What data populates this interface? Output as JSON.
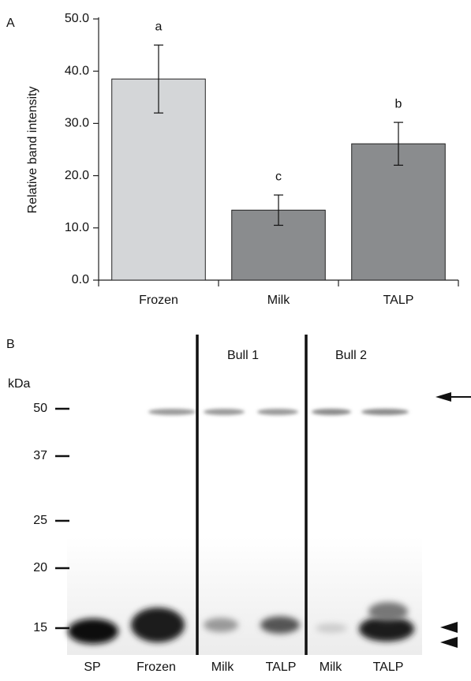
{
  "chart_data": {
    "type": "bar",
    "panel_label": "A",
    "ylabel": "Relative band intensity",
    "categories": [
      "Frozen",
      "Milk",
      "TALP"
    ],
    "values": [
      38.5,
      13.4,
      26.1
    ],
    "errors": [
      6.5,
      2.9,
      4.1
    ],
    "value_annotations": [
      "a",
      "c",
      "b"
    ],
    "colors": [
      "#d4d6d8",
      "#8a8c8e",
      "#8a8c8e"
    ],
    "ylim": [
      0,
      50
    ],
    "yticks": [
      {
        "value": 0,
        "label": "0.0"
      },
      {
        "value": 10,
        "label": "10.0"
      },
      {
        "value": 20,
        "label": "20.0"
      },
      {
        "value": 30,
        "label": "30.0"
      },
      {
        "value": 40,
        "label": "40.0"
      },
      {
        "value": 50,
        "label": "50.0"
      }
    ]
  },
  "blot": {
    "panel_label": "B",
    "unit": "kDa",
    "markers": [
      "50",
      "37",
      "25",
      "20",
      "15"
    ],
    "groups": [
      "Bull 1",
      "Bull 2"
    ],
    "lanes": [
      "SP",
      "Frozen",
      "Milk",
      "TALP",
      "Milk",
      "TALP"
    ]
  }
}
